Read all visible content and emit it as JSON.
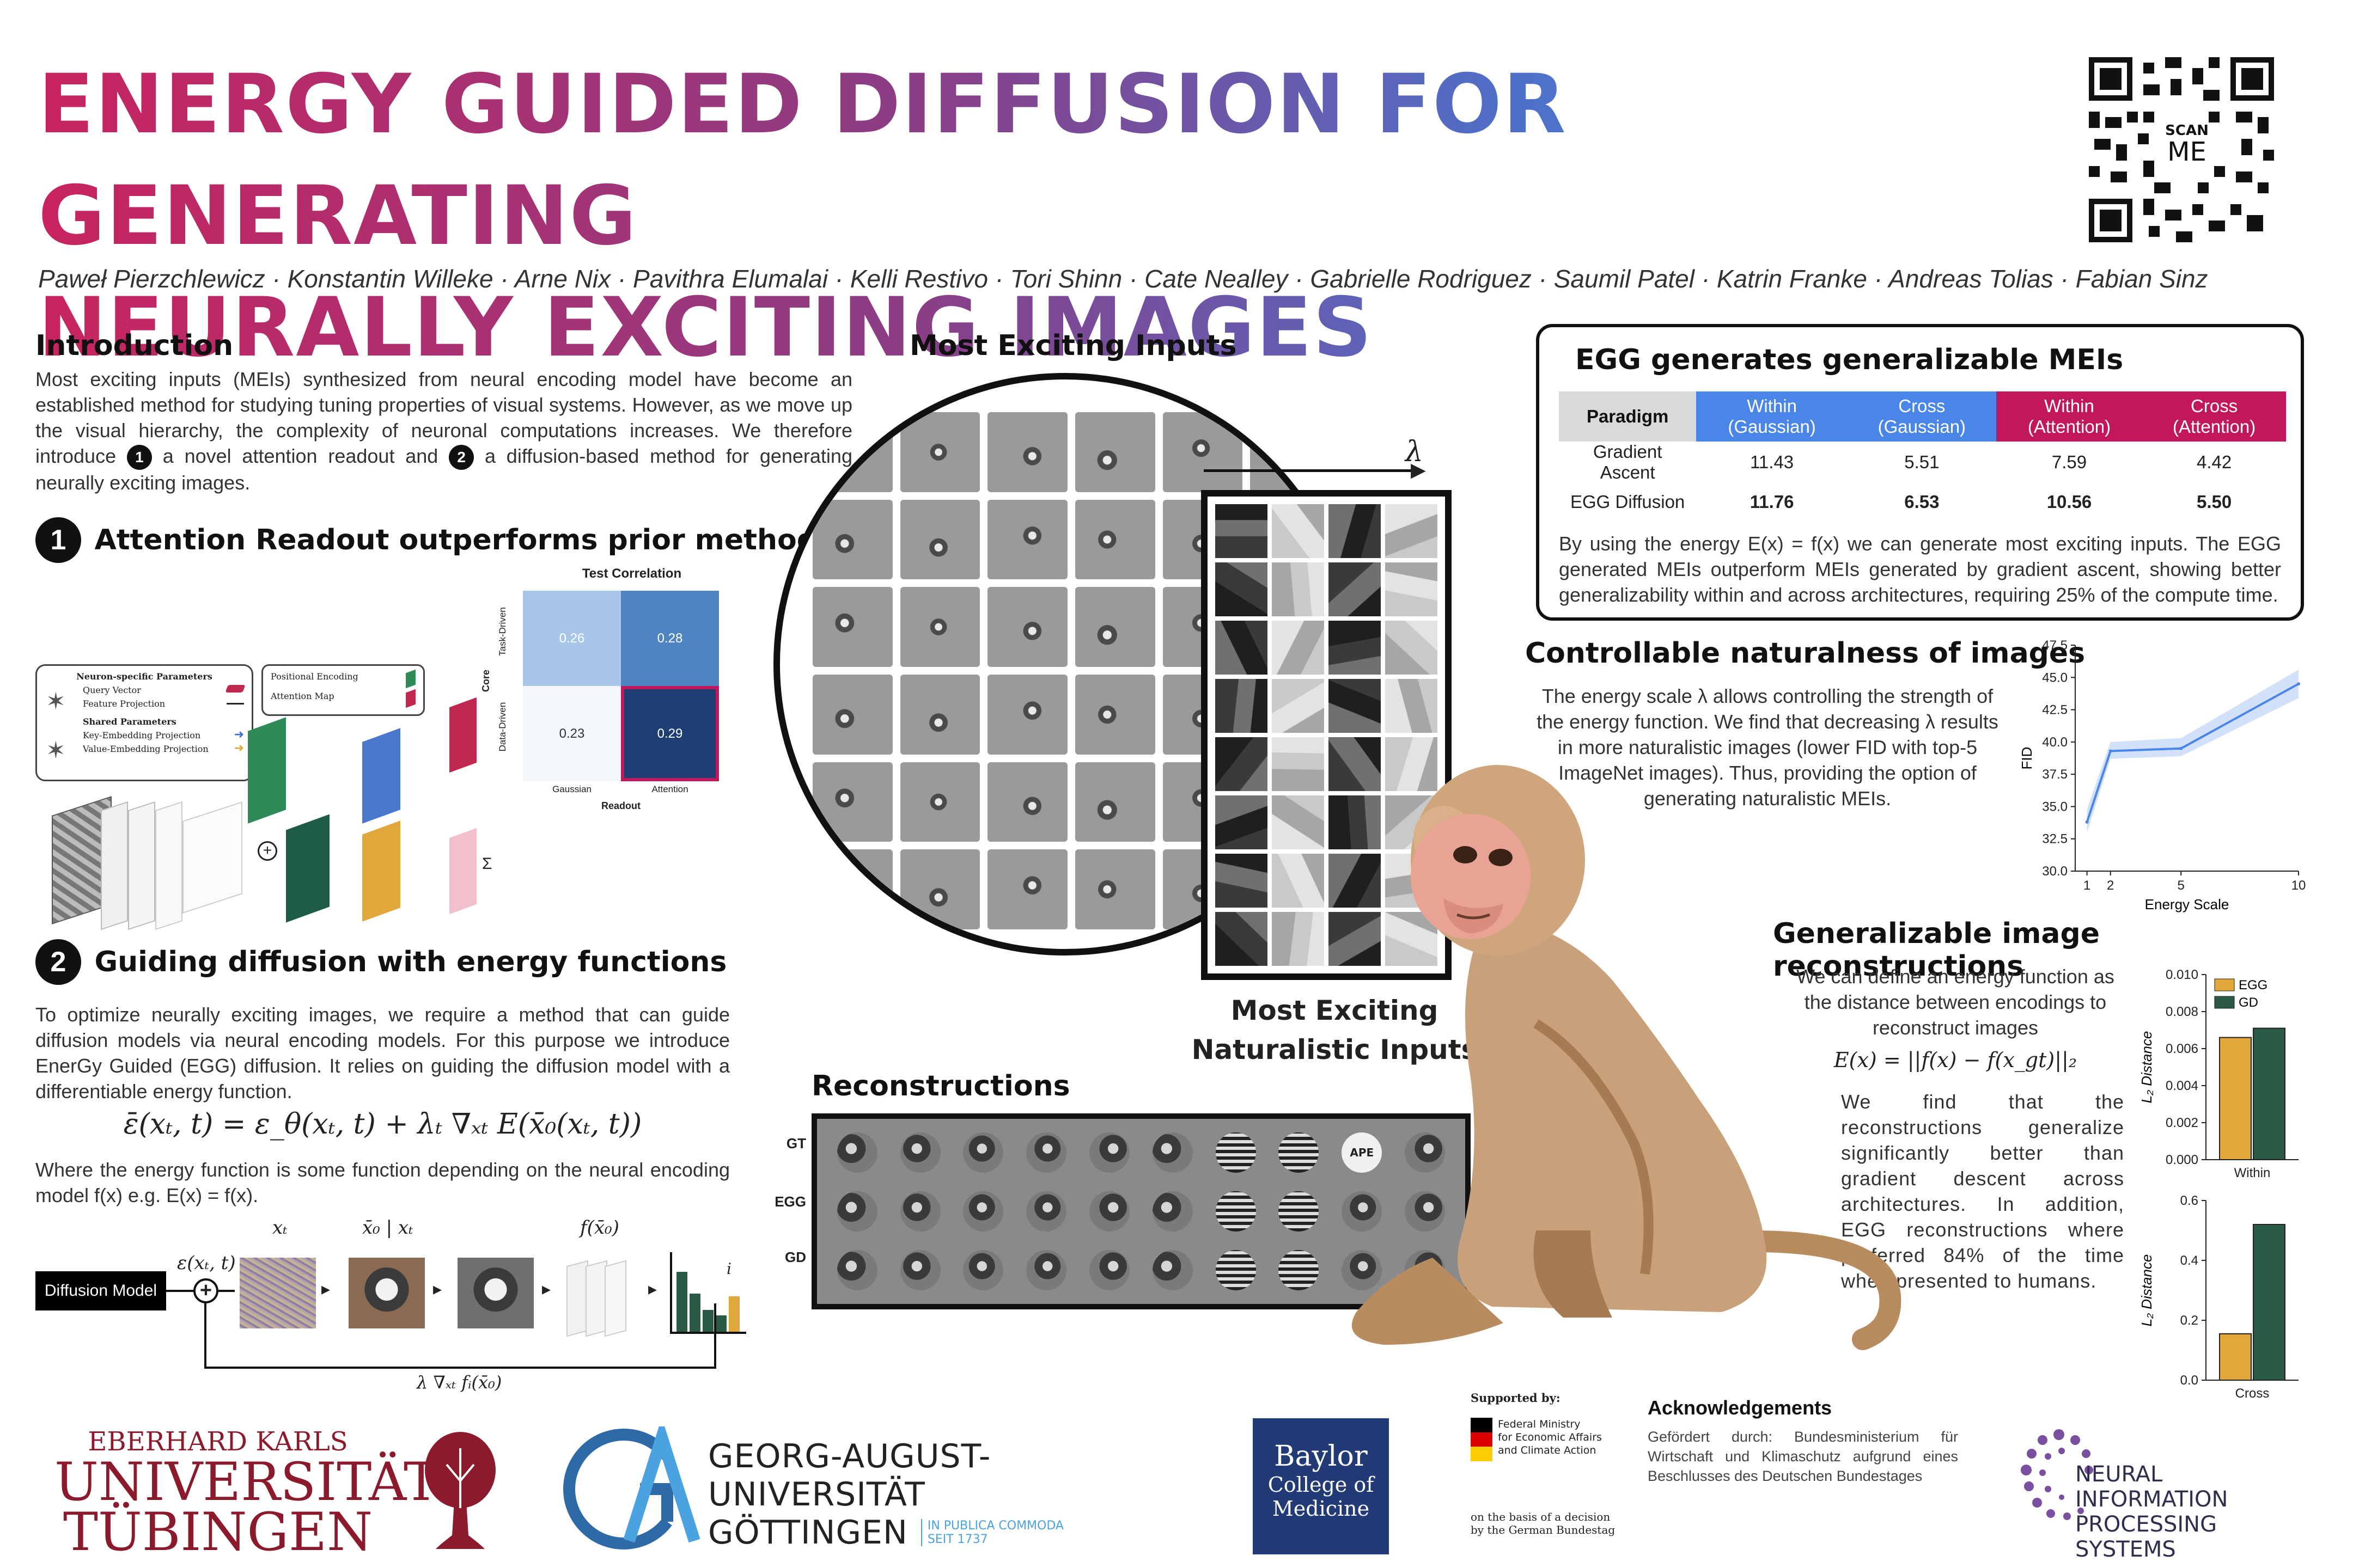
{
  "title": "ENERGY GUIDED DIFFUSION FOR GENERATING NEURALLY EXCITING IMAGES",
  "title_line1": "ENERGY GUIDED DIFFUSION FOR GENERATING",
  "title_line2": "NEURALLY EXCITING IMAGES",
  "qr": {
    "scan_label": "SCAN",
    "me_label": "ME"
  },
  "authors": "Paweł Pierzchlewicz · Konstantin Willeke · Arne Nix · Pavithra Elumalai · Kelli Restivo · Tori Shinn · Cate Nealley · Gabrielle Rodriguez · Saumil Patel · Katrin Franke · Andreas Tolias · Fabian Sinz",
  "intro": {
    "heading": "Introduction",
    "text_a": "Most exciting inputs (MEIs) synthesized from neural encoding model have become an established method for studying tuning properties of visual systems. However, as we move up the visual hierarchy, the complexity of neuronal computations increases. We therefore introduce",
    "badge1": "1",
    "text_b": "a novel attention readout and",
    "badge2": "2",
    "text_c": "a diffusion-based method for generating neurally exciting images."
  },
  "section1": {
    "number": "1",
    "heading": "Attention Readout outperforms prior methods",
    "legend": {
      "neuron_title": "Neuron-specific Parameters",
      "query_vector": "Query Vector",
      "feature_projection": "Feature Projection",
      "shared_title": "Shared Parameters",
      "key_projection": "Key-Embedding Projection",
      "value_projection": "Value-Embedding Projection",
      "positional_encoding": "Positional Encoding",
      "attention_map": "Attention Map"
    },
    "heatmap": {
      "title": "Test Correlation",
      "ylabel": "Core",
      "xlabel": "Readout",
      "rows": [
        "Task-Driven",
        "Data-Driven"
      ],
      "cols": [
        "Gaussian",
        "Attention"
      ],
      "values": [
        [
          "0.26",
          "0.28"
        ],
        [
          "0.23",
          "0.29"
        ]
      ]
    }
  },
  "section2": {
    "number": "2",
    "heading": "Guiding diffusion with energy functions",
    "text_a": "To optimize neurally exciting images, we require a method that can guide diffusion models via neural encoding models. For this purpose we introduce EnerGy Guided (EGG) diffusion. It relies on guiding the diffusion model with a differentiable energy function.",
    "equation": "ε̄(xₜ, t) = ε_θ(xₜ, t) + λₜ ∇ₓₜ E(x̄₀(xₜ, t))",
    "text_b": "Where the energy function is some function depending on the neural encoding model f(x) e.g. E(x) = f(x).",
    "diagram": {
      "box_label": "Diffusion Model",
      "eps_label": "ε(xₜ, t)",
      "xt_label": "xₜ",
      "x0_label": "x̄₀ | xₜ",
      "fx_label": "f(x̄₀)",
      "i_label": "i",
      "feedback_label": "λ ∇ₓₜ fᵢ(x̄₀)"
    }
  },
  "mei": {
    "heading": "Most Exciting Inputs",
    "lambda_label": "λ",
    "naturalistic_line1": "Most Exciting",
    "naturalistic_line2": "Naturalistic Inputs"
  },
  "reconstructions": {
    "heading": "Reconstructions",
    "rows": [
      "GT",
      "EGG",
      "GD"
    ],
    "tile_text": "APE"
  },
  "egg_table": {
    "heading": "EGG generates generalizable MEIs",
    "headers": [
      "Paradigm",
      "Within (Gaussian)",
      "Cross (Gaussian)",
      "Within (Attention)",
      "Cross (Attention)"
    ],
    "header_colors": [
      "#d9d9d9",
      "#4a86e8",
      "#4a86e8",
      "#c2185b",
      "#c2185b"
    ],
    "rows": [
      {
        "name": "Gradient Ascent",
        "values": [
          "11.43",
          "5.51",
          "7.59",
          "4.42"
        ]
      },
      {
        "name": "EGG Diffusion",
        "values": [
          "11.76",
          "6.53",
          "10.56",
          "5.50"
        ]
      }
    ],
    "text": "By using the energy E(x) = f(x) we can generate most exciting inputs. The EGG generated MEIs outperform MEIs generated by gradient ascent, showing better generalizability within and across architectures, requiring 25% of the compute time."
  },
  "naturalness": {
    "heading": "Controllable naturalness of images",
    "text": "The energy scale λ allows controlling the strength of the energy function. We find that decreasing λ results in more naturalistic images (lower FID with top-5 ImageNet images). Thus, providing the option of generating naturalistic MEIs."
  },
  "generalizable": {
    "heading": "Generalizable image reconstructions",
    "text_a": "We can define an energy function as the distance between encodings to reconstruct images",
    "equation": "E(x) = ||f(x) − f(x_gt)||₂",
    "text_b": "We find that the reconstructions generalize significantly better than gradient descent across architectures. In addition, EGG reconstructions where preferred 84% of the time when presented to humans."
  },
  "chart_data": [
    {
      "type": "line",
      "xlabel": "Energy Scale",
      "ylabel": "FID",
      "x": [
        1,
        2,
        5,
        10
      ],
      "series": [
        {
          "values": [
            33.8,
            39.3,
            39.5,
            44.5
          ],
          "band_low": [
            33.0,
            38.7,
            38.9,
            43.4
          ],
          "band_high": [
            34.8,
            40.0,
            40.3,
            45.6
          ]
        }
      ],
      "xticks": [
        "1",
        "2",
        "5",
        "10"
      ],
      "yticks": [
        "30.0",
        "32.5",
        "35.0",
        "37.5",
        "40.0",
        "42.5",
        "45.0",
        "47.5"
      ],
      "ylim": [
        30.0,
        47.5
      ],
      "color": "#4a86e8"
    },
    {
      "type": "bar",
      "categories": [
        "Within"
      ],
      "series": [
        {
          "name": "EGG",
          "values": [
            0.0066
          ]
        },
        {
          "name": "GD",
          "values": [
            0.0071
          ]
        }
      ],
      "ylabel": "L₂ Distance",
      "yticks": [
        "0.000",
        "0.002",
        "0.004",
        "0.006",
        "0.008",
        "0.010"
      ],
      "ylim": [
        0,
        0.01
      ],
      "colors": [
        "#e0a83a",
        "#2b5a45"
      ],
      "legend": "top-left"
    },
    {
      "type": "bar",
      "categories": [
        "Cross"
      ],
      "series": [
        {
          "name": "EGG",
          "values": [
            0.155
          ]
        },
        {
          "name": "GD",
          "values": [
            0.52
          ]
        }
      ],
      "ylabel": "L₂ Distance",
      "yticks": [
        "0.0",
        "0.2",
        "0.4",
        "0.6"
      ],
      "ylim": [
        0,
        0.6
      ],
      "colors": [
        "#e0a83a",
        "#2b5a45"
      ]
    }
  ],
  "footer": {
    "tuebingen_line1": "EBERHARD KARLS",
    "tuebingen_line2": "UNIVERSITÄT",
    "tuebingen_line3": "TÜBINGEN",
    "goettingen_line1": "GEORG-AUGUST-UNIVERSITÄT",
    "goettingen_line2": "GÖTTINGEN",
    "goettingen_motto1": "IN PUBLICA COMMODA",
    "goettingen_motto2": "SEIT 1737",
    "baylor_line1": "Baylor",
    "baylor_line2": "College of",
    "baylor_line3": "Medicine",
    "supported_by": "Supported by:",
    "ministry_line1": "Federal Ministry",
    "ministry_line2": "for Economic Affairs",
    "ministry_line3": "and Climate Action",
    "decision_line1": "on the basis of a decision",
    "decision_line2": "by the German Bundestag",
    "ack_heading": "Acknowledgements",
    "ack_text": "Gefördert durch: Bundesministerium für Wirtschaft und Klimaschutz aufgrund eines Beschlusses des Deutschen Bundestages",
    "neurips_line1": "NEURAL INFORMATION",
    "neurips_line2": "PROCESSING SYSTEMS"
  }
}
